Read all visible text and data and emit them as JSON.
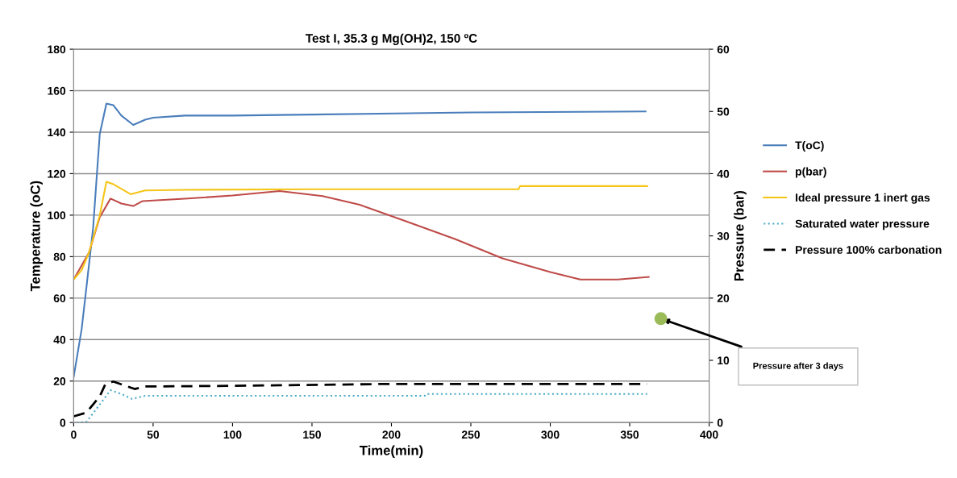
{
  "chart_data": {
    "type": "line",
    "title": "Test I, 35.3 g Mg(OH)2, 150 ºC",
    "xlabel": "Time(min)",
    "ylabel": "Temperature (oC)",
    "y2label": "Pressure (bar)",
    "xlim": [
      0,
      400
    ],
    "xticks": [
      0,
      50,
      100,
      150,
      200,
      250,
      300,
      350,
      400
    ],
    "ylim": [
      0,
      180
    ],
    "yticks": [
      0,
      20,
      40,
      60,
      80,
      100,
      120,
      140,
      160,
      180
    ],
    "y2lim": [
      0,
      60
    ],
    "y2ticks": [
      0,
      10,
      20,
      30,
      40,
      50,
      60
    ],
    "grid": "y",
    "legend": "right",
    "marker": "none",
    "series": [
      {
        "name": "T(oC)",
        "color": "#4a7ebb",
        "line_style": "solid",
        "x": [
          0,
          5,
          8,
          12.2,
          16.4,
          20.6,
          25,
          30,
          37.5,
          45,
          50,
          70,
          100,
          150,
          250,
          360
        ],
        "values": [
          22,
          45,
          65,
          93.6,
          139,
          153.8,
          153,
          148,
          143.5,
          146,
          147,
          148,
          148,
          148.5,
          149.5,
          150
        ]
      },
      {
        "name": "p(bar)",
        "color": "#be4b48",
        "axis": "y2",
        "line_style": "solid",
        "x": [
          0,
          9.6,
          16.4,
          23.2,
          30,
          37.5,
          43.4,
          72,
          100,
          129.6,
          156.7,
          180,
          207.4,
          240,
          269.9,
          300,
          318.9,
          342.5,
          362
        ],
        "values": [
          23,
          27.3,
          33,
          36,
          35.2,
          34.8,
          35.6,
          36,
          36.5,
          37.2,
          36.4,
          35,
          32.5,
          29.5,
          26.4,
          24.2,
          23,
          23,
          23.4
        ]
      },
      {
        "name": "Ideal pressure 1 inert gas",
        "color": "#f5c518",
        "axis": "y2",
        "line_style": "solid",
        "x": [
          0,
          5,
          9.6,
          16.4,
          20.6,
          25,
          35.8,
          45,
          70,
          150,
          280,
          281,
          361
        ],
        "values": [
          23,
          24.5,
          27.3,
          33.3,
          38.7,
          38.3,
          36.7,
          37.3,
          37.4,
          37.5,
          37.5,
          38,
          38
        ]
      },
      {
        "name": "Saturated water pressure",
        "color": "#4bacc6",
        "axis": "y2",
        "line_style": "dotted",
        "x": [
          2,
          8,
          16.4,
          23.2,
          30,
          36.7,
          45,
          100,
          221,
          222,
          361
        ],
        "values": [
          0,
          0.1,
          2.9,
          5.2,
          4.6,
          3.8,
          4.3,
          4.3,
          4.3,
          4.6,
          4.6
        ]
      },
      {
        "name": "Pressure 100% carbonation",
        "color": "#000000",
        "axis": "y2",
        "line_style": "dashed",
        "x": [
          0,
          8,
          16.4,
          19.8,
          24.8,
          38.4,
          45,
          100,
          197,
          361
        ],
        "values": [
          1,
          1.6,
          4.2,
          6.1,
          6.6,
          5.4,
          5.8,
          5.9,
          6.2,
          6.2
        ]
      },
      {
        "type": "scatter",
        "color": "#9bbb59",
        "axis": "y2",
        "marker": "circle",
        "x": [
          369.6
        ],
        "values": [
          16.7
        ]
      }
    ],
    "annotations": [
      "Pressure after 3 days"
    ]
  }
}
